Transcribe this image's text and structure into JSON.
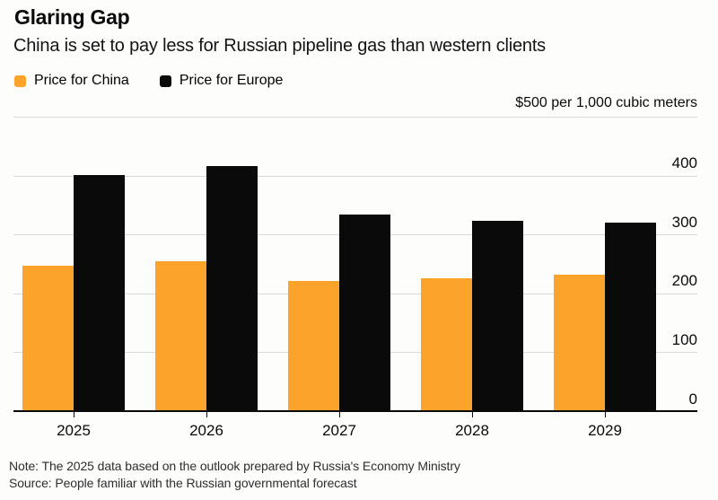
{
  "header": {
    "title": "Glaring Gap",
    "subtitle": "China is set to pay less for Russian pipeline gas than western clients"
  },
  "legend": [
    {
      "label": "Price for China",
      "color": "#fba32b"
    },
    {
      "label": "Price for Europe",
      "color": "#0a0a0a"
    }
  ],
  "unit_label": "$500 per 1,000 cubic meters",
  "chart_data": {
    "type": "bar",
    "title": "Glaring Gap",
    "subtitle": "China is set to pay less for Russian pipeline gas than western clients",
    "unit_label": "$500 per 1,000 cubic meters",
    "categories": [
      "2025",
      "2026",
      "2027",
      "2028",
      "2029"
    ],
    "series": [
      {
        "name": "Price for China",
        "color": "#fba32b",
        "values": [
          248,
          256,
          222,
          226,
          233
        ]
      },
      {
        "name": "Price for Europe",
        "color": "#0a0a0a",
        "values": [
          402,
          417,
          335,
          324,
          321
        ]
      }
    ],
    "ylim": [
      0,
      500
    ],
    "yticks": [
      0,
      100,
      200,
      300,
      400
    ],
    "grid": true,
    "legend_position": "top-left",
    "note": "Note: The 2025 data based on the outlook prepared by Russia's Economy Ministry",
    "source": "Source: People familiar with the Russian governmental forecast"
  },
  "footer": {
    "note": "Note: The 2025 data based on the outlook prepared by Russia's Economy Ministry",
    "source": "Source: People familiar with the Russian governmental forecast"
  },
  "colors": {
    "china_bar": "#fba32b",
    "europe_bar": "#0a0a0a",
    "gridline": "#d9d9d9",
    "axis_line": "#0a0a0a"
  }
}
